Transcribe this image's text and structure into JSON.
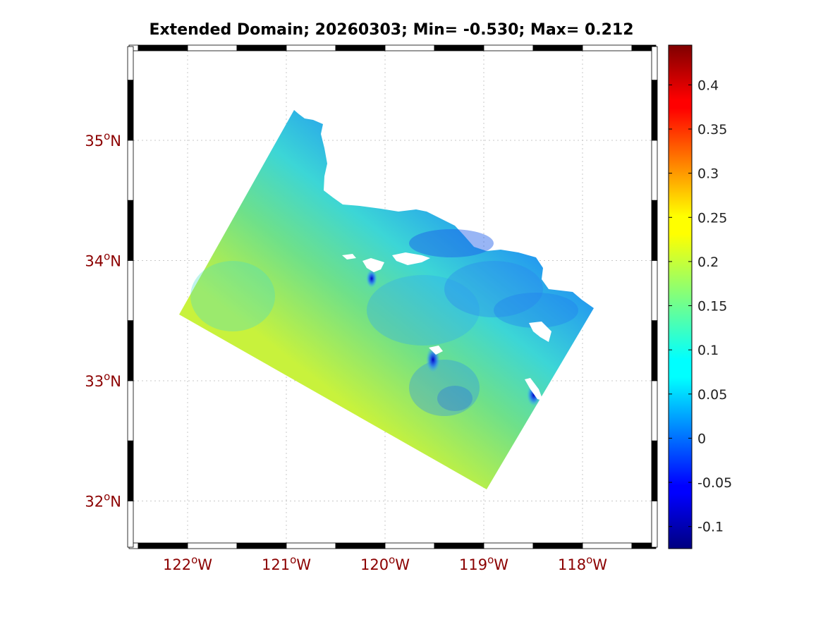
{
  "title": "Extended Domain; 20260303; Min= -0.530; Max= 0.212",
  "map": {
    "projection": "Mercator-like lat/lon",
    "lon_range": [
      -122.6,
      -117.3
    ],
    "lat_range": [
      31.6,
      35.8
    ],
    "lon_ticks": [
      {
        "value": -122,
        "deg": "122",
        "hemi": "W"
      },
      {
        "value": -121,
        "deg": "121",
        "hemi": "W"
      },
      {
        "value": -120,
        "deg": "120",
        "hemi": "W"
      },
      {
        "value": -119,
        "deg": "119",
        "hemi": "W"
      },
      {
        "value": -118,
        "deg": "118",
        "hemi": "W"
      }
    ],
    "lat_ticks": [
      {
        "value": 35,
        "deg": "35",
        "hemi": "N"
      },
      {
        "value": 34,
        "deg": "34",
        "hemi": "N"
      },
      {
        "value": 33,
        "deg": "33",
        "hemi": "N"
      },
      {
        "value": 32,
        "deg": "32",
        "hemi": "N"
      }
    ],
    "degree_symbol": "o",
    "tick_label_color": "#8b0000",
    "grid": true,
    "data_region_color_description": "field mostly 0.05–0.2; yellow-green in the southwest, blue near the coast",
    "colors": {
      "southwest": "#c8f23c",
      "west": "#6ee08a",
      "center": "#3cd6d6",
      "coast": "#1e8cf5",
      "land": "#ffffff"
    }
  },
  "colorbar": {
    "colormap": "jet",
    "range": [
      -0.125,
      0.445
    ],
    "ticks": [
      "0.4",
      "0.35",
      "0.3",
      "0.25",
      "0.2",
      "0.15",
      "0.1",
      "0.05",
      "0",
      "-0.05",
      "-0.1"
    ],
    "tick_values": [
      0.4,
      0.35,
      0.3,
      0.25,
      0.2,
      0.15,
      0.1,
      0.05,
      0,
      -0.05,
      -0.1
    ]
  }
}
